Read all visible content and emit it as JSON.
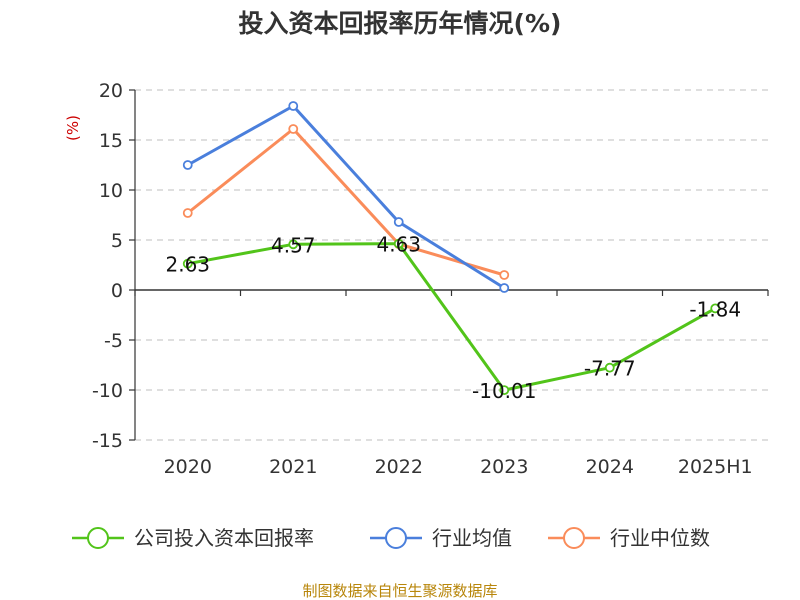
{
  "chart_data": {
    "type": "line",
    "title": "投入资本回报率历年情况(%)",
    "ylabel": "(%)",
    "categories": [
      "2020",
      "2021",
      "2022",
      "2023",
      "2024",
      "2025H1"
    ],
    "ylim": [
      -15,
      20
    ],
    "yticks": [
      20,
      15,
      10,
      5,
      0,
      -5,
      -10,
      -15
    ],
    "grid": true,
    "legend_position": "bottom",
    "series": [
      {
        "name": "公司投入资本回报率",
        "color": "#52c41a",
        "values": [
          2.63,
          4.57,
          4.63,
          -10.01,
          -7.77,
          -1.84
        ],
        "labels": [
          "2.63",
          "4.57",
          "4.63",
          "-10.01",
          "-7.77",
          "-1.84"
        ]
      },
      {
        "name": "行业均值",
        "color": "#4a7fdc",
        "values": [
          12.5,
          18.4,
          6.8,
          0.2,
          null,
          null
        ]
      },
      {
        "name": "行业中位数",
        "color": "#fa8c5a",
        "values": [
          7.7,
          16.1,
          4.6,
          1.5,
          null,
          null
        ]
      }
    ]
  },
  "footer": {
    "source": "制图数据来自恒生聚源数据库"
  }
}
